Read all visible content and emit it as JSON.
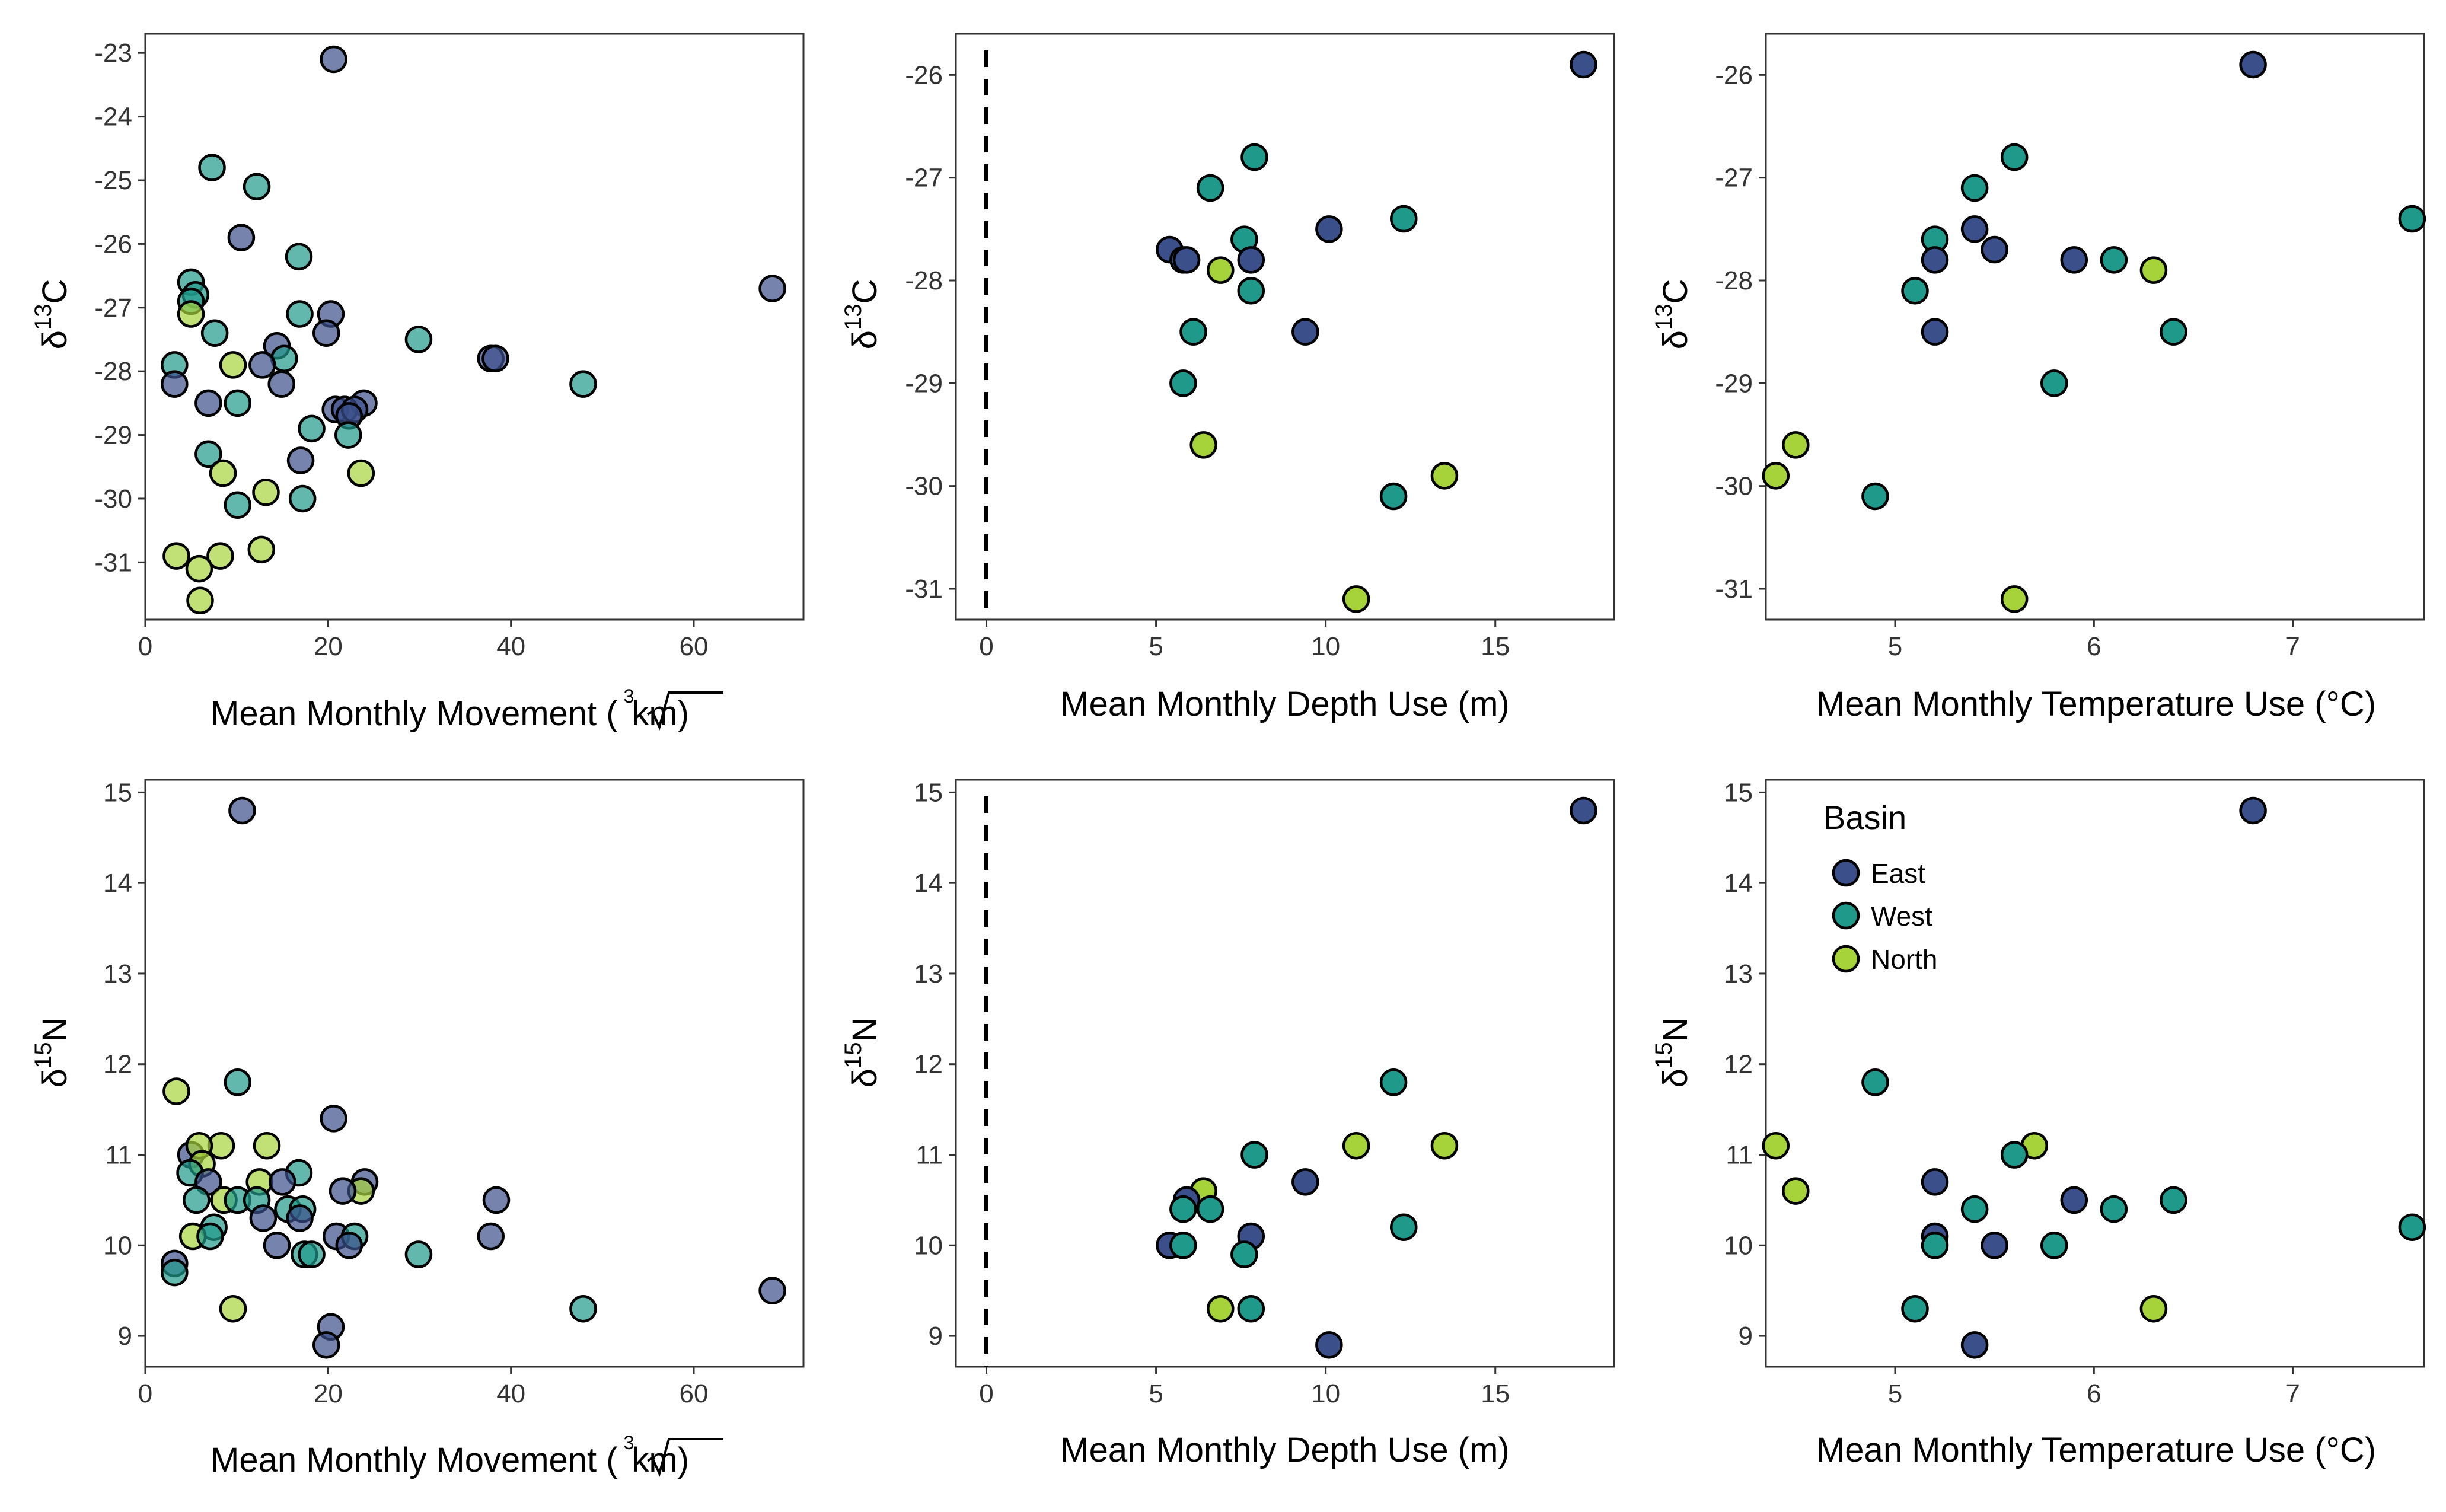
{
  "legend": {
    "title": "Basin",
    "items": [
      {
        "label": "East",
        "color": "#3B4F8A"
      },
      {
        "label": "West",
        "color": "#1F9A8A"
      },
      {
        "label": "North",
        "color": "#A6D33A"
      }
    ]
  },
  "axis_titles": {
    "movement": "Mean Monthly Movement (",
    "movement_root_index": "3",
    "movement_root_radicand": "km",
    "movement_close": ")",
    "depth": "Mean Monthly Depth Use (m)",
    "temperature": "Mean Monthly Temperature Use (°C)",
    "c13_prefix": "δ",
    "c13_sup": "13",
    "c13_element": "C",
    "n15_prefix": "δ",
    "n15_sup": "15",
    "n15_element": "N"
  },
  "chart_data": [
    {
      "type": "scatter",
      "xlabel": "Mean Monthly Movement (∛km)",
      "ylabel": "δ13C",
      "xlim": [
        0,
        72
      ],
      "ylim": [
        -31.9,
        -22.7
      ],
      "xticks": [
        0,
        20,
        40,
        60
      ],
      "yticks": [
        -31,
        -30,
        -29,
        -28,
        -27,
        -26,
        -25,
        -24,
        -23
      ],
      "grid": false,
      "point_opacity": 0.7,
      "points": [
        {
          "x": 20.6,
          "y": -23.1,
          "basin": "East"
        },
        {
          "x": 7.3,
          "y": -24.8,
          "basin": "West"
        },
        {
          "x": 12.2,
          "y": -25.1,
          "basin": "West"
        },
        {
          "x": 10.5,
          "y": -25.9,
          "basin": "East"
        },
        {
          "x": 16.8,
          "y": -26.2,
          "basin": "West"
        },
        {
          "x": 5.0,
          "y": -26.6,
          "basin": "West"
        },
        {
          "x": 5.5,
          "y": -26.8,
          "basin": "West"
        },
        {
          "x": 5.0,
          "y": -26.9,
          "basin": "West"
        },
        {
          "x": 5.0,
          "y": -27.1,
          "basin": "North"
        },
        {
          "x": 16.9,
          "y": -27.1,
          "basin": "West"
        },
        {
          "x": 20.3,
          "y": -27.1,
          "basin": "East"
        },
        {
          "x": 7.6,
          "y": -27.4,
          "basin": "West"
        },
        {
          "x": 19.8,
          "y": -27.4,
          "basin": "East"
        },
        {
          "x": 14.4,
          "y": -27.6,
          "basin": "East"
        },
        {
          "x": 29.9,
          "y": -27.5,
          "basin": "West"
        },
        {
          "x": 15.2,
          "y": -27.8,
          "basin": "West"
        },
        {
          "x": 12.8,
          "y": -27.9,
          "basin": "East"
        },
        {
          "x": 9.6,
          "y": -27.9,
          "basin": "North"
        },
        {
          "x": 3.2,
          "y": -27.9,
          "basin": "West"
        },
        {
          "x": 37.8,
          "y": -27.8,
          "basin": "East"
        },
        {
          "x": 38.3,
          "y": -27.8,
          "basin": "East"
        },
        {
          "x": 3.2,
          "y": -28.2,
          "basin": "East"
        },
        {
          "x": 14.9,
          "y": -28.2,
          "basin": "East"
        },
        {
          "x": 47.9,
          "y": -28.2,
          "basin": "West"
        },
        {
          "x": 6.9,
          "y": -28.5,
          "basin": "East"
        },
        {
          "x": 10.1,
          "y": -28.5,
          "basin": "West"
        },
        {
          "x": 23.9,
          "y": -28.5,
          "basin": "East"
        },
        {
          "x": 20.8,
          "y": -28.6,
          "basin": "East"
        },
        {
          "x": 21.8,
          "y": -28.6,
          "basin": "East"
        },
        {
          "x": 22.9,
          "y": -28.6,
          "basin": "East"
        },
        {
          "x": 22.3,
          "y": -28.7,
          "basin": "East"
        },
        {
          "x": 18.2,
          "y": -28.9,
          "basin": "West"
        },
        {
          "x": 22.2,
          "y": -29.0,
          "basin": "West"
        },
        {
          "x": 6.9,
          "y": -29.3,
          "basin": "West"
        },
        {
          "x": 17.0,
          "y": -29.4,
          "basin": "East"
        },
        {
          "x": 8.5,
          "y": -29.6,
          "basin": "North"
        },
        {
          "x": 23.6,
          "y": -29.6,
          "basin": "North"
        },
        {
          "x": 13.2,
          "y": -29.9,
          "basin": "North"
        },
        {
          "x": 17.2,
          "y": -30.0,
          "basin": "West"
        },
        {
          "x": 10.1,
          "y": -30.1,
          "basin": "West"
        },
        {
          "x": 12.7,
          "y": -30.8,
          "basin": "North"
        },
        {
          "x": 3.4,
          "y": -30.9,
          "basin": "North"
        },
        {
          "x": 8.2,
          "y": -30.9,
          "basin": "North"
        },
        {
          "x": 5.9,
          "y": -31.1,
          "basin": "North"
        },
        {
          "x": 6.0,
          "y": -31.6,
          "basin": "North"
        },
        {
          "x": 68.6,
          "y": -26.7,
          "basin": "East"
        }
      ]
    },
    {
      "type": "scatter",
      "xlabel": "Mean Monthly Depth Use (m)",
      "ylabel": "δ13C",
      "xlim": [
        -0.9,
        18.5
      ],
      "ylim": [
        -31.3,
        -25.6
      ],
      "xticks": [
        0,
        5,
        10,
        15
      ],
      "yticks": [
        -31,
        -30,
        -29,
        -28,
        -27,
        -26
      ],
      "grid": false,
      "reference_line": {
        "x": 0,
        "style": "dashed"
      },
      "points": [
        {
          "x": 17.6,
          "y": -25.9,
          "basin": "East"
        },
        {
          "x": 7.9,
          "y": -26.8,
          "basin": "West"
        },
        {
          "x": 6.6,
          "y": -27.1,
          "basin": "West"
        },
        {
          "x": 12.3,
          "y": -27.4,
          "basin": "West"
        },
        {
          "x": 10.1,
          "y": -27.5,
          "basin": "East"
        },
        {
          "x": 7.6,
          "y": -27.6,
          "basin": "West"
        },
        {
          "x": 5.4,
          "y": -27.7,
          "basin": "East"
        },
        {
          "x": 7.8,
          "y": -27.8,
          "basin": "East"
        },
        {
          "x": 5.8,
          "y": -27.8,
          "basin": "East"
        },
        {
          "x": 5.9,
          "y": -27.8,
          "basin": "East"
        },
        {
          "x": 6.9,
          "y": -27.9,
          "basin": "North"
        },
        {
          "x": 7.8,
          "y": -28.1,
          "basin": "West"
        },
        {
          "x": 9.4,
          "y": -28.5,
          "basin": "East"
        },
        {
          "x": 6.1,
          "y": -28.5,
          "basin": "West"
        },
        {
          "x": 5.8,
          "y": -29.0,
          "basin": "West"
        },
        {
          "x": 6.4,
          "y": -29.6,
          "basin": "North"
        },
        {
          "x": 13.5,
          "y": -29.9,
          "basin": "North"
        },
        {
          "x": 12.0,
          "y": -30.1,
          "basin": "West"
        },
        {
          "x": 10.9,
          "y": -31.1,
          "basin": "North"
        }
      ]
    },
    {
      "type": "scatter",
      "xlabel": "Mean Monthly Temperature Use (°C)",
      "ylabel": "δ13C",
      "xlim": [
        4.35,
        7.66
      ],
      "ylim": [
        -31.3,
        -25.6
      ],
      "xticks": [
        5,
        6,
        7
      ],
      "yticks": [
        -31,
        -30,
        -29,
        -28,
        -27,
        -26
      ],
      "grid": false,
      "points": [
        {
          "x": 6.8,
          "y": -25.9,
          "basin": "East"
        },
        {
          "x": 5.6,
          "y": -26.8,
          "basin": "West"
        },
        {
          "x": 5.4,
          "y": -27.1,
          "basin": "West"
        },
        {
          "x": 7.6,
          "y": -27.4,
          "basin": "West"
        },
        {
          "x": 5.4,
          "y": -27.5,
          "basin": "East"
        },
        {
          "x": 5.2,
          "y": -27.6,
          "basin": "West"
        },
        {
          "x": 5.5,
          "y": -27.7,
          "basin": "East"
        },
        {
          "x": 5.2,
          "y": -27.8,
          "basin": "East"
        },
        {
          "x": 6.1,
          "y": -27.8,
          "basin": "West"
        },
        {
          "x": 5.9,
          "y": -27.8,
          "basin": "East"
        },
        {
          "x": 6.3,
          "y": -27.9,
          "basin": "North"
        },
        {
          "x": 5.1,
          "y": -28.1,
          "basin": "West"
        },
        {
          "x": 5.2,
          "y": -28.5,
          "basin": "East"
        },
        {
          "x": 6.4,
          "y": -28.5,
          "basin": "West"
        },
        {
          "x": 5.8,
          "y": -29.0,
          "basin": "West"
        },
        {
          "x": 4.5,
          "y": -29.6,
          "basin": "North"
        },
        {
          "x": 4.4,
          "y": -29.9,
          "basin": "North"
        },
        {
          "x": 4.9,
          "y": -30.1,
          "basin": "West"
        },
        {
          "x": 5.6,
          "y": -31.1,
          "basin": "North"
        }
      ]
    },
    {
      "type": "scatter",
      "xlabel": "Mean Monthly Movement (∛km)",
      "ylabel": "δ15N",
      "xlim": [
        0,
        72
      ],
      "ylim": [
        8.66,
        15.14
      ],
      "xticks": [
        0,
        20,
        40,
        60
      ],
      "yticks": [
        9,
        10,
        11,
        12,
        13,
        14,
        15
      ],
      "grid": false,
      "point_opacity": 0.7,
      "points": [
        {
          "x": 10.6,
          "y": 14.8,
          "basin": "East"
        },
        {
          "x": 3.4,
          "y": 11.7,
          "basin": "North"
        },
        {
          "x": 10.1,
          "y": 11.8,
          "basin": "West"
        },
        {
          "x": 20.6,
          "y": 11.4,
          "basin": "East"
        },
        {
          "x": 8.3,
          "y": 11.1,
          "basin": "North"
        },
        {
          "x": 13.3,
          "y": 11.1,
          "basin": "North"
        },
        {
          "x": 5.0,
          "y": 11.0,
          "basin": "East"
        },
        {
          "x": 5.9,
          "y": 11.1,
          "basin": "North"
        },
        {
          "x": 6.2,
          "y": 10.9,
          "basin": "North"
        },
        {
          "x": 4.9,
          "y": 10.8,
          "basin": "West"
        },
        {
          "x": 16.8,
          "y": 10.8,
          "basin": "West"
        },
        {
          "x": 12.5,
          "y": 10.7,
          "basin": "North"
        },
        {
          "x": 15.0,
          "y": 10.7,
          "basin": "East"
        },
        {
          "x": 6.9,
          "y": 10.7,
          "basin": "East"
        },
        {
          "x": 24.0,
          "y": 10.7,
          "basin": "East"
        },
        {
          "x": 23.6,
          "y": 10.6,
          "basin": "North"
        },
        {
          "x": 21.6,
          "y": 10.6,
          "basin": "East"
        },
        {
          "x": 8.6,
          "y": 10.5,
          "basin": "North"
        },
        {
          "x": 5.6,
          "y": 10.5,
          "basin": "West"
        },
        {
          "x": 10.1,
          "y": 10.5,
          "basin": "West"
        },
        {
          "x": 12.2,
          "y": 10.5,
          "basin": "West"
        },
        {
          "x": 15.6,
          "y": 10.4,
          "basin": "West"
        },
        {
          "x": 17.2,
          "y": 10.4,
          "basin": "West"
        },
        {
          "x": 38.4,
          "y": 10.5,
          "basin": "East"
        },
        {
          "x": 7.5,
          "y": 10.2,
          "basin": "West"
        },
        {
          "x": 12.9,
          "y": 10.3,
          "basin": "East"
        },
        {
          "x": 16.9,
          "y": 10.3,
          "basin": "East"
        },
        {
          "x": 5.2,
          "y": 10.1,
          "basin": "North"
        },
        {
          "x": 7.1,
          "y": 10.1,
          "basin": "West"
        },
        {
          "x": 14.4,
          "y": 10.0,
          "basin": "East"
        },
        {
          "x": 20.9,
          "y": 10.1,
          "basin": "East"
        },
        {
          "x": 22.9,
          "y": 10.1,
          "basin": "West"
        },
        {
          "x": 22.3,
          "y": 10.0,
          "basin": "East"
        },
        {
          "x": 37.8,
          "y": 10.1,
          "basin": "East"
        },
        {
          "x": 17.4,
          "y": 9.9,
          "basin": "West"
        },
        {
          "x": 18.2,
          "y": 9.9,
          "basin": "West"
        },
        {
          "x": 29.9,
          "y": 9.9,
          "basin": "West"
        },
        {
          "x": 3.2,
          "y": 9.8,
          "basin": "East"
        },
        {
          "x": 3.2,
          "y": 9.7,
          "basin": "West"
        },
        {
          "x": 9.6,
          "y": 9.3,
          "basin": "North"
        },
        {
          "x": 47.9,
          "y": 9.3,
          "basin": "West"
        },
        {
          "x": 68.6,
          "y": 9.5,
          "basin": "East"
        },
        {
          "x": 20.3,
          "y": 9.1,
          "basin": "East"
        },
        {
          "x": 19.8,
          "y": 8.9,
          "basin": "East"
        }
      ]
    },
    {
      "type": "scatter",
      "xlabel": "Mean Monthly Depth Use (m)",
      "ylabel": "δ15N",
      "xlim": [
        -0.9,
        18.5
      ],
      "ylim": [
        8.66,
        15.14
      ],
      "xticks": [
        0,
        5,
        10,
        15
      ],
      "yticks": [
        9,
        10,
        11,
        12,
        13,
        14,
        15
      ],
      "grid": false,
      "reference_line": {
        "x": 0,
        "style": "dashed"
      },
      "points": [
        {
          "x": 17.6,
          "y": 14.8,
          "basin": "East"
        },
        {
          "x": 12.0,
          "y": 11.8,
          "basin": "West"
        },
        {
          "x": 13.5,
          "y": 11.1,
          "basin": "North"
        },
        {
          "x": 10.9,
          "y": 11.1,
          "basin": "North"
        },
        {
          "x": 7.9,
          "y": 11.0,
          "basin": "West"
        },
        {
          "x": 9.4,
          "y": 10.7,
          "basin": "East"
        },
        {
          "x": 6.4,
          "y": 10.6,
          "basin": "North"
        },
        {
          "x": 5.9,
          "y": 10.5,
          "basin": "East"
        },
        {
          "x": 5.8,
          "y": 10.4,
          "basin": "West"
        },
        {
          "x": 6.6,
          "y": 10.4,
          "basin": "West"
        },
        {
          "x": 12.3,
          "y": 10.2,
          "basin": "West"
        },
        {
          "x": 7.8,
          "y": 10.1,
          "basin": "East"
        },
        {
          "x": 5.4,
          "y": 10.0,
          "basin": "East"
        },
        {
          "x": 5.8,
          "y": 10.0,
          "basin": "West"
        },
        {
          "x": 7.6,
          "y": 9.9,
          "basin": "West"
        },
        {
          "x": 6.9,
          "y": 9.3,
          "basin": "North"
        },
        {
          "x": 7.8,
          "y": 9.3,
          "basin": "West"
        },
        {
          "x": 10.1,
          "y": 8.9,
          "basin": "East"
        }
      ]
    },
    {
      "type": "scatter",
      "xlabel": "Mean Monthly Temperature Use (°C)",
      "ylabel": "δ15N",
      "xlim": [
        4.35,
        7.66
      ],
      "ylim": [
        8.66,
        15.14
      ],
      "xticks": [
        5,
        6,
        7
      ],
      "yticks": [
        9,
        10,
        11,
        12,
        13,
        14,
        15
      ],
      "grid": false,
      "legend": "top-left",
      "points": [
        {
          "x": 6.8,
          "y": 14.8,
          "basin": "East"
        },
        {
          "x": 4.9,
          "y": 11.8,
          "basin": "West"
        },
        {
          "x": 4.4,
          "y": 11.1,
          "basin": "North"
        },
        {
          "x": 5.7,
          "y": 11.1,
          "basin": "North"
        },
        {
          "x": 5.6,
          "y": 11.0,
          "basin": "West"
        },
        {
          "x": 5.2,
          "y": 10.7,
          "basin": "East"
        },
        {
          "x": 4.5,
          "y": 10.6,
          "basin": "North"
        },
        {
          "x": 5.9,
          "y": 10.5,
          "basin": "East"
        },
        {
          "x": 6.4,
          "y": 10.5,
          "basin": "West"
        },
        {
          "x": 6.1,
          "y": 10.4,
          "basin": "West"
        },
        {
          "x": 5.4,
          "y": 10.4,
          "basin": "West"
        },
        {
          "x": 7.6,
          "y": 10.2,
          "basin": "West"
        },
        {
          "x": 5.2,
          "y": 10.1,
          "basin": "East"
        },
        {
          "x": 5.5,
          "y": 10.0,
          "basin": "East"
        },
        {
          "x": 5.2,
          "y": 10.0,
          "basin": "West"
        },
        {
          "x": 5.8,
          "y": 10.0,
          "basin": "West"
        },
        {
          "x": 6.3,
          "y": 9.3,
          "basin": "North"
        },
        {
          "x": 5.1,
          "y": 9.3,
          "basin": "West"
        },
        {
          "x": 5.4,
          "y": 8.9,
          "basin": "East"
        }
      ]
    }
  ]
}
